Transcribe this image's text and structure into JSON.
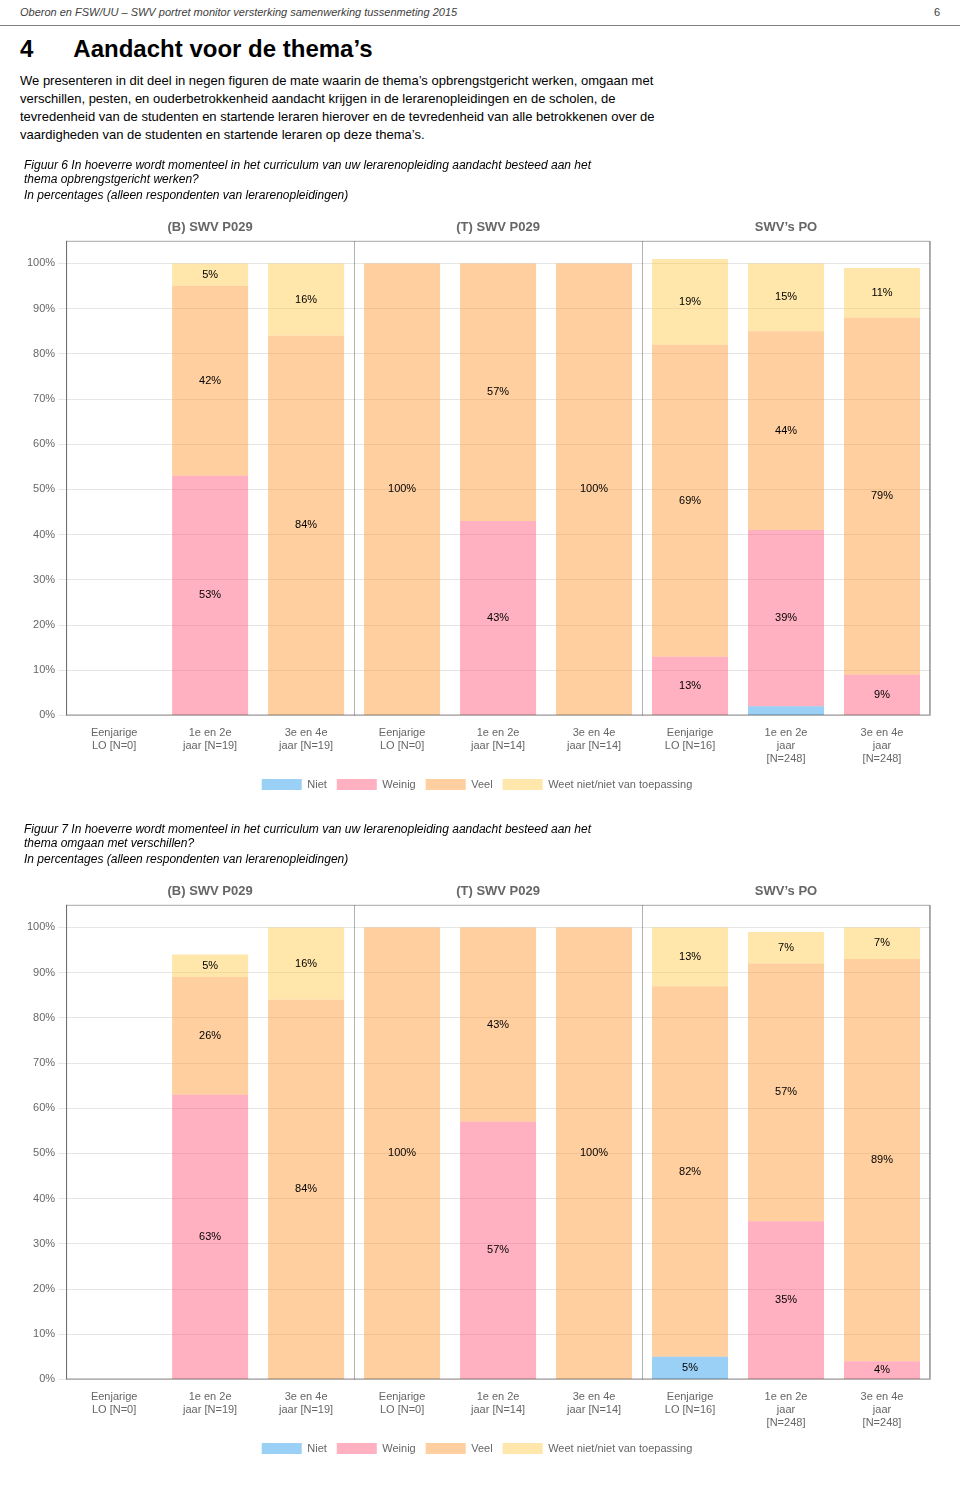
{
  "header": "Oberon en FSW/UU – SWV portret monitor versterking samenwerking tussenmeting 2015",
  "page_number": "6",
  "chapter_number": "4",
  "chapter_title": "Aandacht voor de thema’s",
  "intro": [
    "We presenteren in dit deel in negen figuren de mate waarin de thema’s opbrengstgericht werken, omgaan met",
    "verschillen, pesten, en ouderbetrokkenheid aandacht krijgen in de lerarenopleidingen en de scholen, de",
    "tevredenheid van de studenten en startende leraren hierover en de tevredenheid van alle betrokkenen over de",
    "vaardigheden van de studenten en startende leraren op deze thema’s."
  ],
  "chart_data": [
    {
      "type": "bar",
      "stacked": true,
      "title": [
        "Figuur 6 In hoeverre wordt momenteel in het curriculum van uw lerarenopleiding aandacht besteed aan het",
        "thema opbrengstgericht werken?"
      ],
      "subtitle": "In percentages (alleen respondenten van lerarenopleidingen)",
      "groups": [
        "(B) SWV P029",
        "(T) SWV P029",
        "SWV’s PO"
      ],
      "categories": [
        "Eenjarige\nLO [N=0]",
        "1e en 2e\njaar [N=19]",
        "3e en 4e\njaar [N=19]",
        "Eenjarige\nLO [N=0]",
        "1e en 2e\njaar [N=14]",
        "3e en 4e\njaar [N=14]",
        "Eenjarige\nLO [N=16]",
        "1e en 2e\njaar\n[N=248]",
        "3e en 4e\njaar\n[N=248]"
      ],
      "series": [
        {
          "name": "Niet",
          "values": [
            0,
            0,
            0,
            0,
            0,
            0,
            0,
            2,
            0
          ],
          "value_labels": [
            null,
            null,
            null,
            null,
            null,
            null,
            null,
            null,
            null
          ]
        },
        {
          "name": "Weinig",
          "values": [
            0,
            53,
            0,
            0,
            43,
            0,
            13,
            39,
            9
          ],
          "value_labels": [
            null,
            "53%",
            null,
            null,
            "43%",
            null,
            "13%",
            "39%",
            "9%"
          ]
        },
        {
          "name": "Veel",
          "values": [
            0,
            42,
            84,
            100,
            57,
            100,
            69,
            44,
            79
          ],
          "value_labels": [
            null,
            "42%",
            "84%",
            "100%",
            "57%",
            "100%",
            "69%",
            "44%",
            "79%"
          ]
        },
        {
          "name": "Weet niet/niet van toepassing",
          "values": [
            0,
            5,
            16,
            0,
            0,
            0,
            19,
            15,
            11
          ],
          "value_labels": [
            null,
            "5%",
            "16%",
            null,
            null,
            null,
            "19%",
            "15%",
            "11%"
          ]
        }
      ],
      "ylim": [
        0,
        105
      ],
      "yticks": [
        {
          "value": 0,
          "label": "0%"
        },
        {
          "value": 10,
          "label": "10%"
        },
        {
          "value": 20,
          "label": "20%"
        },
        {
          "value": 30,
          "label": "30%"
        },
        {
          "value": 40,
          "label": "40%"
        },
        {
          "value": 50,
          "label": "50%"
        },
        {
          "value": 60,
          "label": "60%"
        },
        {
          "value": 70,
          "label": "70%"
        },
        {
          "value": 80,
          "label": "80%"
        },
        {
          "value": 90,
          "label": "90%"
        },
        {
          "value": 100,
          "label": "100%"
        }
      ],
      "grid": true,
      "legend": "bottom",
      "data_labels": true
    },
    {
      "type": "bar",
      "stacked": true,
      "title": [
        "Figuur 7 In hoeverre wordt momenteel in het curriculum van uw lerarenopleiding aandacht besteed aan het",
        "thema omgaan met verschillen?"
      ],
      "subtitle": "In percentages (alleen respondenten van lerarenopleidingen)",
      "groups": [
        "(B) SWV P029",
        "(T) SWV P029",
        "SWV’s PO"
      ],
      "categories": [
        "Eenjarige\nLO [N=0]",
        "1e en 2e\njaar [N=19]",
        "3e en 4e\njaar [N=19]",
        "Eenjarige\nLO [N=0]",
        "1e en 2e\njaar [N=14]",
        "3e en 4e\njaar [N=14]",
        "Eenjarige\nLO [N=16]",
        "1e en 2e\njaar\n[N=248]",
        "3e en 4e\njaar\n[N=248]"
      ],
      "series": [
        {
          "name": "Niet",
          "values": [
            0,
            0,
            0,
            0,
            0,
            0,
            5,
            0,
            0
          ],
          "value_labels": [
            null,
            null,
            null,
            null,
            null,
            null,
            "5%",
            null,
            null
          ]
        },
        {
          "name": "Weinig",
          "values": [
            0,
            63,
            0,
            0,
            57,
            0,
            0,
            35,
            4
          ],
          "value_labels": [
            null,
            "63%",
            null,
            null,
            "57%",
            null,
            null,
            "35%",
            "4%"
          ]
        },
        {
          "name": "Veel",
          "values": [
            0,
            26,
            84,
            100,
            43,
            100,
            82,
            57,
            89
          ],
          "value_labels": [
            null,
            "26%",
            "84%",
            "100%",
            "43%",
            "100%",
            "82%",
            "57%",
            "89%"
          ]
        },
        {
          "name": "Weet niet/niet van toepassing",
          "values": [
            0,
            5,
            16,
            0,
            0,
            0,
            13,
            7,
            7
          ],
          "value_labels": [
            null,
            "5%",
            "16%",
            null,
            null,
            null,
            "13%",
            "7%",
            "7%"
          ]
        }
      ],
      "ylim": [
        0,
        105
      ],
      "yticks": [
        {
          "value": 0,
          "label": "0%"
        },
        {
          "value": 10,
          "label": "10%"
        },
        {
          "value": 20,
          "label": "20%"
        },
        {
          "value": 30,
          "label": "30%"
        },
        {
          "value": 40,
          "label": "40%"
        },
        {
          "value": 50,
          "label": "50%"
        },
        {
          "value": 60,
          "label": "60%"
        },
        {
          "value": 70,
          "label": "70%"
        },
        {
          "value": 80,
          "label": "80%"
        },
        {
          "value": 90,
          "label": "90%"
        },
        {
          "value": 100,
          "label": "100%"
        }
      ],
      "grid": true,
      "legend": "bottom",
      "data_labels": true
    }
  ]
}
